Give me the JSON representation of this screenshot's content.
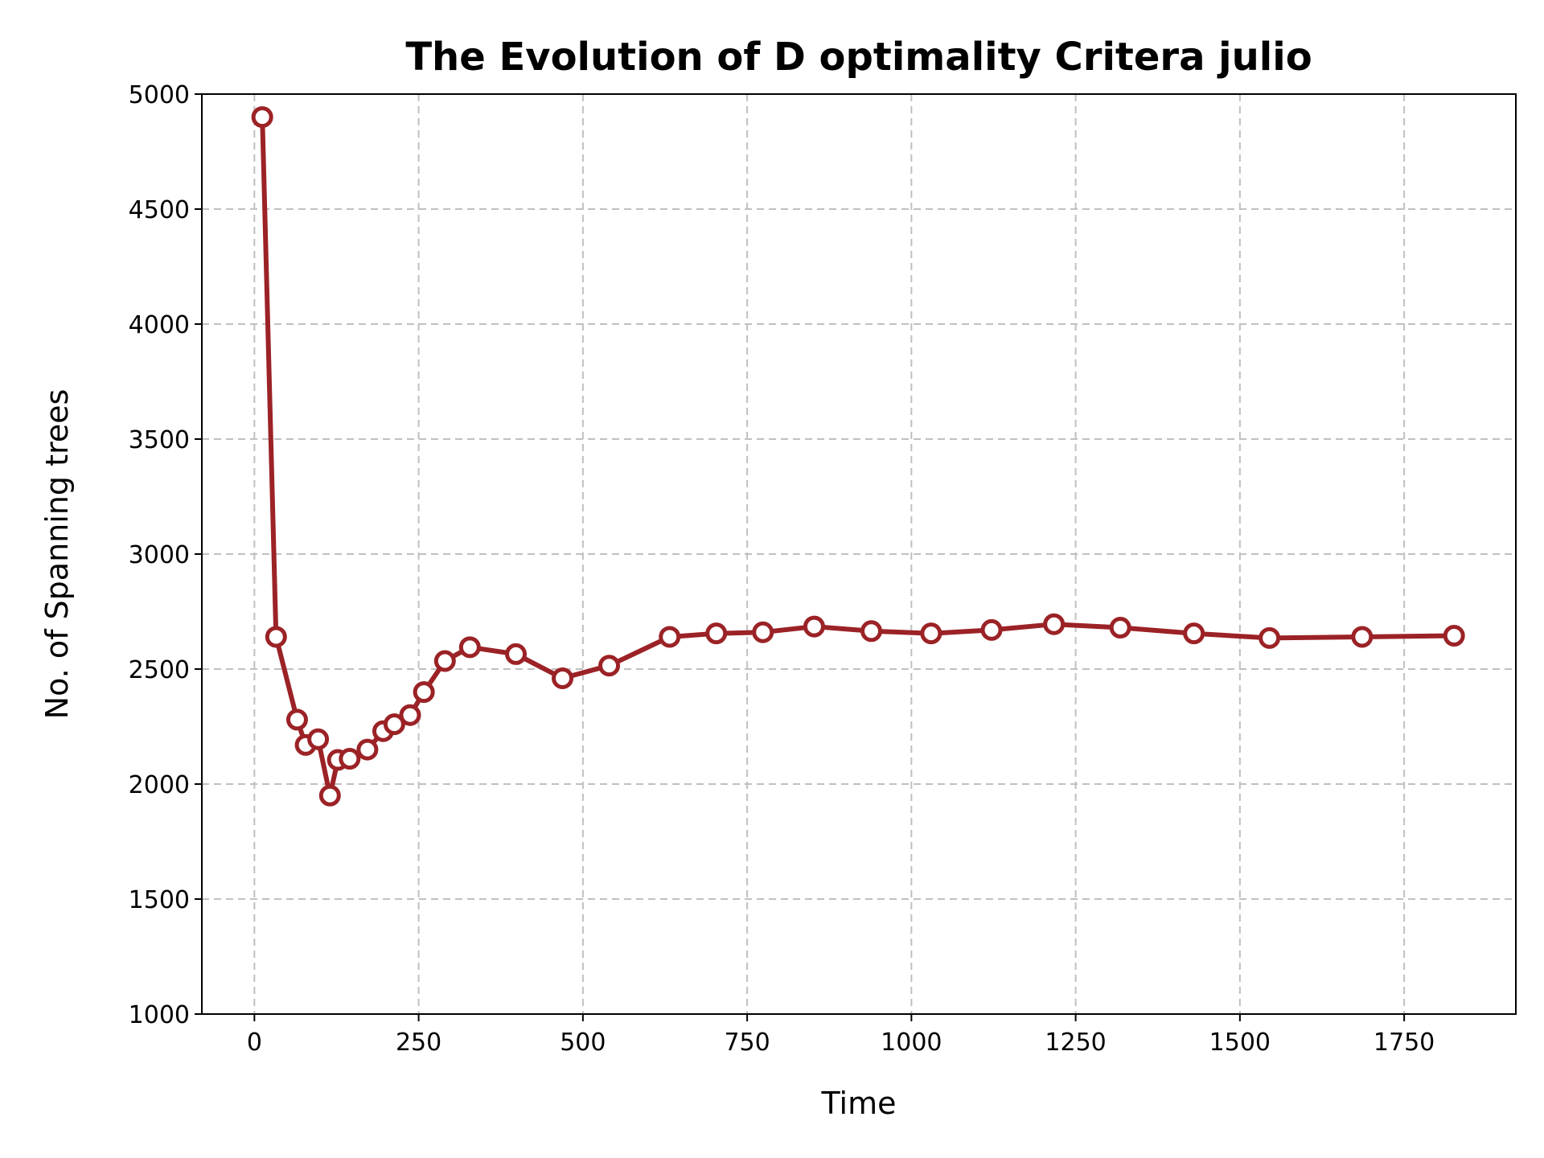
{
  "chart_data": {
    "type": "line",
    "title": "The Evolution of D optimality Critera julio",
    "xlabel": "Time",
    "ylabel": "No. of Spanning trees",
    "xlim": [
      -80,
      1920
    ],
    "ylim": [
      1000,
      5000
    ],
    "xticks": [
      0,
      250,
      500,
      750,
      1000,
      1250,
      1500,
      1750
    ],
    "yticks": [
      1000,
      1500,
      2000,
      2500,
      3000,
      3500,
      4000,
      4500,
      5000
    ],
    "grid": true,
    "legend": "none",
    "series": [
      {
        "color": "#9b2226",
        "marker": "circle-open",
        "x": [
          12,
          33,
          65,
          78,
          97,
          115,
          127,
          145,
          172,
          196,
          213,
          237,
          258,
          290,
          328,
          398,
          469,
          540,
          632,
          703,
          774,
          852,
          939,
          1030,
          1122,
          1217,
          1318,
          1430,
          1545,
          1686,
          1826
        ],
        "y": [
          4900,
          2640,
          2280,
          2170,
          2195,
          1950,
          2105,
          2110,
          2150,
          2230,
          2260,
          2300,
          2400,
          2535,
          2595,
          2565,
          2460,
          2515,
          2640,
          2655,
          2660,
          2685,
          2665,
          2655,
          2670,
          2695,
          2680,
          2655,
          2635,
          2640,
          2645
        ]
      }
    ]
  }
}
